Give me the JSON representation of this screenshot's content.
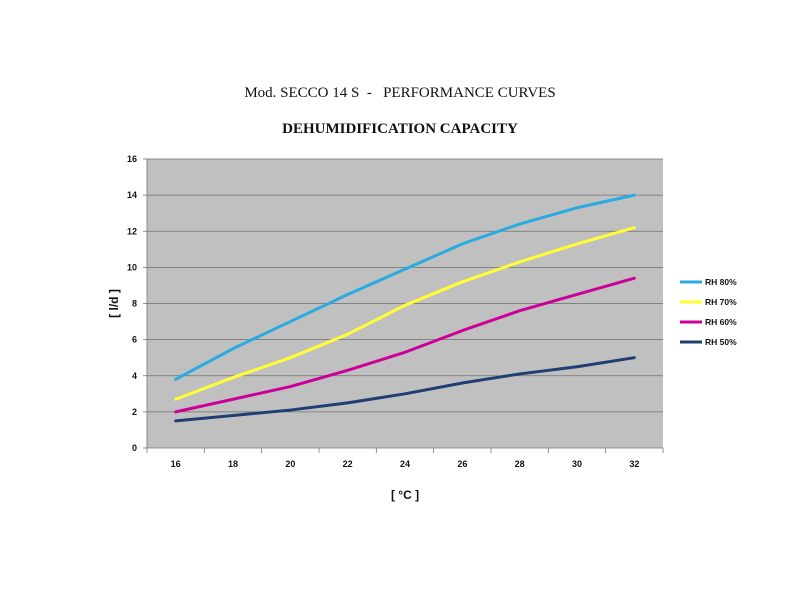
{
  "header": {
    "title": "Mod. SECCO 14 S  -   PERFORMANCE CURVES"
  },
  "chart_data": {
    "type": "line",
    "title": "DEHUMIDIFICATION CAPACITY",
    "xlabel": "[ °C ]",
    "ylabel": "[ l/d ]",
    "x": [
      16,
      18,
      20,
      22,
      24,
      26,
      28,
      30,
      32
    ],
    "yticks": [
      0,
      2,
      4,
      6,
      8,
      10,
      12,
      14,
      16
    ],
    "ylim": [
      0,
      16
    ],
    "xlim": [
      15,
      33
    ],
    "grid": true,
    "background": "#c0c0c0",
    "legend_position": "right",
    "series": [
      {
        "name": "RH 80%",
        "color": "#29abe2",
        "values": [
          3.8,
          5.5,
          7.0,
          8.5,
          9.9,
          11.3,
          12.4,
          13.3,
          14.0
        ]
      },
      {
        "name": "RH 70%",
        "color": "#ffff33",
        "values": [
          2.7,
          3.9,
          5.0,
          6.3,
          7.9,
          9.2,
          10.3,
          11.3,
          12.2
        ]
      },
      {
        "name": "RH 60%",
        "color": "#cc0099",
        "values": [
          2.0,
          2.7,
          3.4,
          4.3,
          5.3,
          6.5,
          7.6,
          8.5,
          9.4
        ]
      },
      {
        "name": "RH 50%",
        "color": "#1f3f73",
        "values": [
          1.5,
          1.8,
          2.1,
          2.5,
          3.0,
          3.6,
          4.1,
          4.5,
          5.0
        ]
      }
    ]
  }
}
